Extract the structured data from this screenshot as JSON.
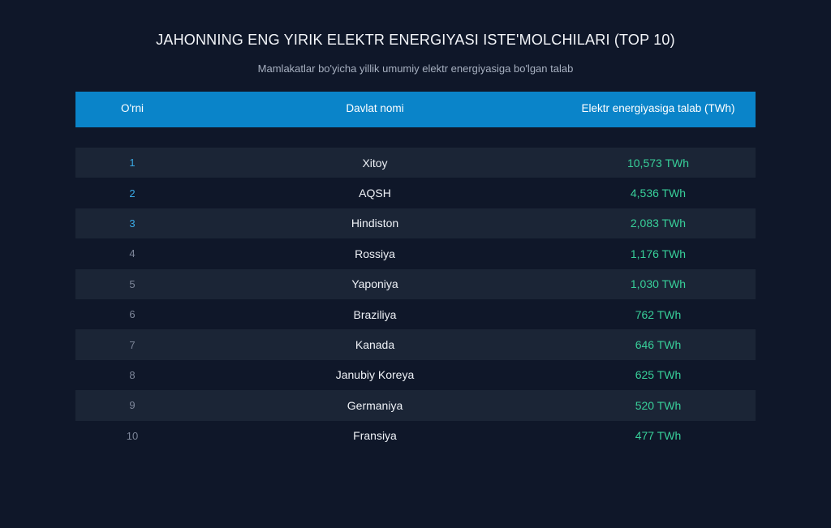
{
  "title": "JAHONNING ENG YIRIK ELEKTR ENERGIYASI ISTE'MOLCHILARI (TOP 10)",
  "subtitle": "Mamlakatlar bo'yicha yillik umumiy elektr energiyasiga bo'lgan talab",
  "header": {
    "rank": "O'rni",
    "country": "Davlat nomi",
    "demand": "Elektr energiyasiga talab (TWh)"
  },
  "colors": {
    "background": "#0f1729",
    "header": "#0a84c9",
    "row_stripe": "#1b2536",
    "value": "#38d09a",
    "top_rank": "#3aa9e4"
  },
  "chart_data": {
    "type": "table",
    "columns": [
      "O'rni",
      "Davlat nomi",
      "Elektr energiyasiga talab (TWh)"
    ],
    "unit": "TWh",
    "rows": [
      {
        "rank": "1",
        "country": "Xitoy",
        "value": 10573,
        "value_label": "10,573 TWh"
      },
      {
        "rank": "2",
        "country": "AQSH",
        "value": 4536,
        "value_label": "4,536 TWh"
      },
      {
        "rank": "3",
        "country": "Hindiston",
        "value": 2083,
        "value_label": "2,083 TWh"
      },
      {
        "rank": "4",
        "country": "Rossiya",
        "value": 1176,
        "value_label": "1,176 TWh"
      },
      {
        "rank": "5",
        "country": "Yaponiya",
        "value": 1030,
        "value_label": "1,030 TWh"
      },
      {
        "rank": "6",
        "country": "Braziliya",
        "value": 762,
        "value_label": "762 TWh"
      },
      {
        "rank": "7",
        "country": "Kanada",
        "value": 646,
        "value_label": "646 TWh"
      },
      {
        "rank": "8",
        "country": "Janubiy Koreya",
        "value": 625,
        "value_label": "625 TWh"
      },
      {
        "rank": "9",
        "country": "Germaniya",
        "value": 520,
        "value_label": "520 TWh"
      },
      {
        "rank": "10",
        "country": "Fransiya",
        "value": 477,
        "value_label": "477 TWh"
      }
    ]
  }
}
